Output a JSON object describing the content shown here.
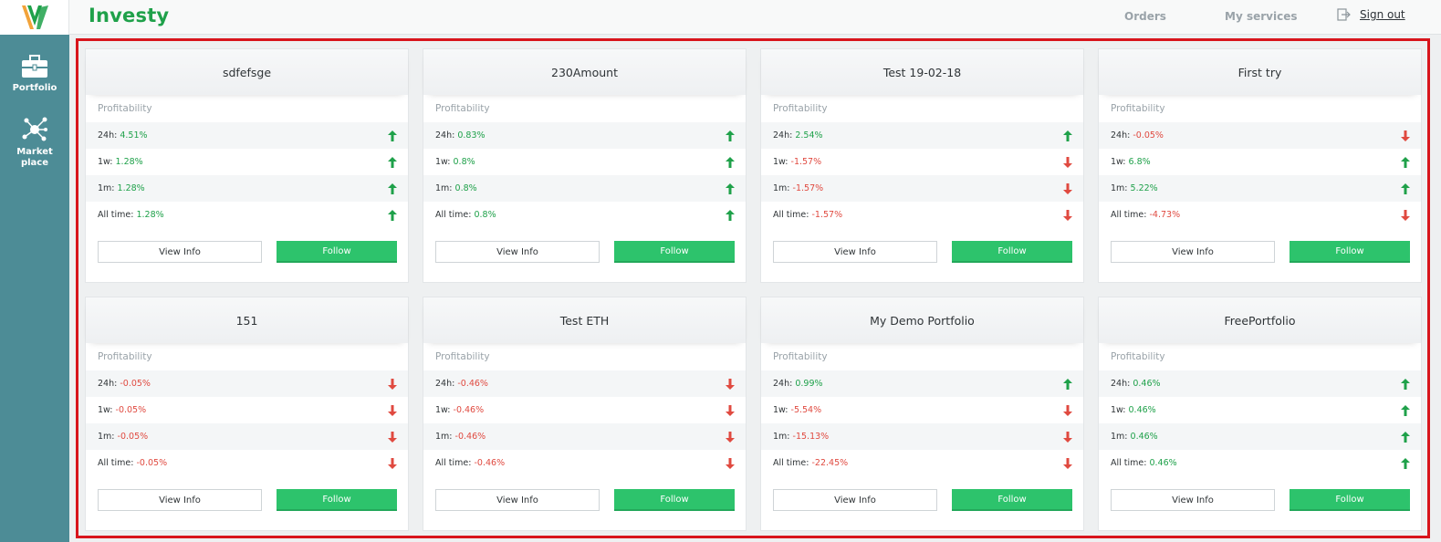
{
  "header": {
    "brand": "Investy",
    "nav": {
      "orders": "Orders",
      "services": "My services"
    },
    "signout": "Sign out",
    "colors": {
      "brand": "#1fa14a",
      "sidebar": "#4d8c96",
      "follow": "#2dc36c",
      "up": "#1fa14a",
      "down": "#e04a40"
    }
  },
  "sidebar": {
    "portfolio": {
      "label": "Portfolio",
      "icon": "briefcase-icon"
    },
    "market": {
      "label": "Market place",
      "icon": "network-icon"
    }
  },
  "cards": [
    {
      "title": "sdfefsge",
      "section": "Profitability",
      "rows": [
        {
          "label": "24h: ",
          "value": "4.51%",
          "trend": "up"
        },
        {
          "label": "1w: ",
          "value": "1.28%",
          "trend": "up"
        },
        {
          "label": "1m: ",
          "value": "1.28%",
          "trend": "up"
        },
        {
          "label": "All time: ",
          "value": "1.28%",
          "trend": "up"
        }
      ],
      "info": "View Info",
      "follow": "Follow"
    },
    {
      "title": "230Amount",
      "section": "Profitability",
      "rows": [
        {
          "label": "24h: ",
          "value": "0.83%",
          "trend": "up"
        },
        {
          "label": "1w: ",
          "value": "0.8%",
          "trend": "up"
        },
        {
          "label": "1m: ",
          "value": "0.8%",
          "trend": "up"
        },
        {
          "label": "All time: ",
          "value": "0.8%",
          "trend": "up"
        }
      ],
      "info": "View Info",
      "follow": "Follow"
    },
    {
      "title": "Test 19-02-18",
      "section": "Profitability",
      "rows": [
        {
          "label": "24h: ",
          "value": "2.54%",
          "trend": "up"
        },
        {
          "label": "1w: ",
          "value": "-1.57%",
          "trend": "down"
        },
        {
          "label": "1m: ",
          "value": "-1.57%",
          "trend": "down"
        },
        {
          "label": "All time: ",
          "value": "-1.57%",
          "trend": "down"
        }
      ],
      "info": "View Info",
      "follow": "Follow"
    },
    {
      "title": "First try",
      "section": "Profitability",
      "rows": [
        {
          "label": "24h: ",
          "value": "-0.05%",
          "trend": "down"
        },
        {
          "label": "1w: ",
          "value": "6.8%",
          "trend": "up"
        },
        {
          "label": "1m: ",
          "value": "5.22%",
          "trend": "up"
        },
        {
          "label": "All time: ",
          "value": "-4.73%",
          "trend": "down"
        }
      ],
      "info": "View Info",
      "follow": "Follow"
    },
    {
      "title": "151",
      "section": "Profitability",
      "rows": [
        {
          "label": "24h: ",
          "value": "-0.05%",
          "trend": "down"
        },
        {
          "label": "1w: ",
          "value": "-0.05%",
          "trend": "down"
        },
        {
          "label": "1m: ",
          "value": "-0.05%",
          "trend": "down"
        },
        {
          "label": "All time: ",
          "value": "-0.05%",
          "trend": "down"
        }
      ],
      "info": "View Info",
      "follow": "Follow"
    },
    {
      "title": "Test ETH",
      "section": "Profitability",
      "rows": [
        {
          "label": "24h: ",
          "value": "-0.46%",
          "trend": "down"
        },
        {
          "label": "1w: ",
          "value": "-0.46%",
          "trend": "down"
        },
        {
          "label": "1m: ",
          "value": "-0.46%",
          "trend": "down"
        },
        {
          "label": "All time: ",
          "value": "-0.46%",
          "trend": "down"
        }
      ],
      "info": "View Info",
      "follow": "Follow"
    },
    {
      "title": "My Demo Portfolio",
      "section": "Profitability",
      "rows": [
        {
          "label": "24h: ",
          "value": "0.99%",
          "trend": "up"
        },
        {
          "label": "1w: ",
          "value": "-5.54%",
          "trend": "down"
        },
        {
          "label": "1m: ",
          "value": "-15.13%",
          "trend": "down"
        },
        {
          "label": "All time: ",
          "value": "-22.45%",
          "trend": "down"
        }
      ],
      "info": "View Info",
      "follow": "Follow"
    },
    {
      "title": "FreePortfolio",
      "section": "Profitability",
      "rows": [
        {
          "label": "24h: ",
          "value": "0.46%",
          "trend": "up"
        },
        {
          "label": "1w: ",
          "value": "0.46%",
          "trend": "up"
        },
        {
          "label": "1m: ",
          "value": "0.46%",
          "trend": "up"
        },
        {
          "label": "All time: ",
          "value": "0.46%",
          "trend": "up"
        }
      ],
      "info": "View Info",
      "follow": "Follow"
    }
  ]
}
